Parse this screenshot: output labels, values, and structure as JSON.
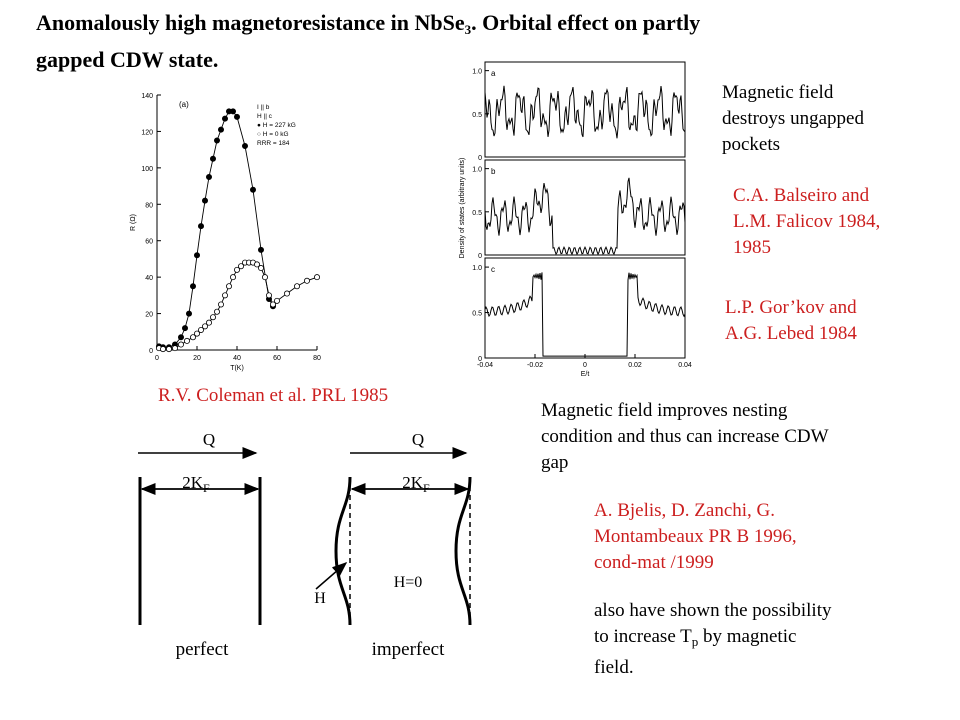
{
  "title": {
    "line1": "Anomalously high magnetoresistance in NbSe",
    "sub": "3",
    "line1_end": ". Orbital effect on partly",
    "line2": "gapped CDW state."
  },
  "texts": {
    "field_destroys": [
      "Magnetic field",
      "destroys ungapped",
      "pockets"
    ],
    "balseiro": [
      "C.A. Balseiro and",
      "L.M. Falicov 1984,",
      "1985"
    ],
    "gorkov": [
      "L.P. Gor’kov and",
      "A.G. Lebed 1984"
    ],
    "coleman": "R.V. Coleman et al. PRL 1985",
    "nesting": [
      "Magnetic field improves nesting",
      "condition and thus can increase CDW",
      "gap"
    ],
    "bjelis": [
      "A. Bjelis, D. Zanchi, G.",
      "Montambeaux PR B 1996,",
      "cond-mat /1999"
    ],
    "also_line1": "also have shown the possibility",
    "also_line2": "to increase  T",
    "also_sub": "p",
    "also_line2_end": " by magnetic",
    "also_line3": "field."
  },
  "colors": {
    "red": "#cc1f1f",
    "black": "#000000"
  },
  "chart_data": [
    {
      "type": "scatter",
      "panel": "(a)",
      "xlabel": "T(K)",
      "ylabel": "R (Ω)",
      "xlim": [
        0,
        80
      ],
      "ylim": [
        0,
        140
      ],
      "xticks": [
        0,
        20,
        40,
        60,
        80
      ],
      "yticks": [
        0,
        20,
        40,
        60,
        80,
        100,
        120,
        140
      ],
      "legend": [
        "I || b",
        "H || c",
        "● H = 227 kG",
        "○ H = 0 kG",
        "RRR = 184"
      ],
      "series": [
        {
          "name": "H = 227 kG",
          "marker": "filled",
          "x": [
            1,
            3,
            6,
            9,
            12,
            14,
            16,
            18,
            20,
            22,
            24,
            26,
            28,
            30,
            32,
            34,
            36,
            38,
            40,
            44,
            48,
            52,
            56,
            58
          ],
          "y": [
            2,
            1.5,
            1.5,
            3,
            7,
            12,
            20,
            35,
            52,
            68,
            82,
            95,
            105,
            115,
            121,
            127,
            131,
            131,
            128,
            112,
            88,
            55,
            28,
            24
          ]
        },
        {
          "name": "H = 0 kG",
          "marker": "open",
          "x": [
            1,
            3,
            6,
            9,
            12,
            15,
            18,
            20,
            22,
            24,
            26,
            28,
            30,
            32,
            34,
            36,
            38,
            40,
            42,
            44,
            46,
            48,
            50,
            52,
            54,
            56,
            58,
            60,
            65,
            70,
            75,
            80
          ],
          "y": [
            1,
            0.5,
            0.5,
            1,
            3,
            5,
            7,
            9,
            11,
            13,
            15,
            18,
            21,
            25,
            30,
            35,
            40,
            44,
            46,
            48,
            48,
            48,
            47,
            45,
            40,
            30,
            25,
            27,
            31,
            35,
            38,
            40
          ]
        }
      ]
    },
    {
      "type": "line",
      "xlabel": "E/t",
      "ylabel": "Density of states (arbitrary units)",
      "xlim": [
        -0.04,
        0.04
      ],
      "xticks": [
        "-0.04",
        "-0.02",
        "0",
        "0.02",
        "0.04"
      ],
      "panels": [
        {
          "label": "a",
          "yticks": [
            "0",
            "0.5",
            "1.0"
          ]
        },
        {
          "label": "b",
          "yticks": [
            "0",
            "0.5",
            "1.0"
          ]
        },
        {
          "label": "c",
          "yticks": [
            "0",
            "0.5",
            "1.0"
          ]
        }
      ]
    }
  ],
  "diagram": {
    "q_left": "Q",
    "q_right": "Q",
    "kf_left": "2K",
    "kf_left_sub": "F",
    "kf_right": "2K",
    "kf_right_sub": "F",
    "h_label": "H",
    "h0_label": "H=0",
    "perfect": "perfect",
    "imperfect": "imperfect"
  }
}
